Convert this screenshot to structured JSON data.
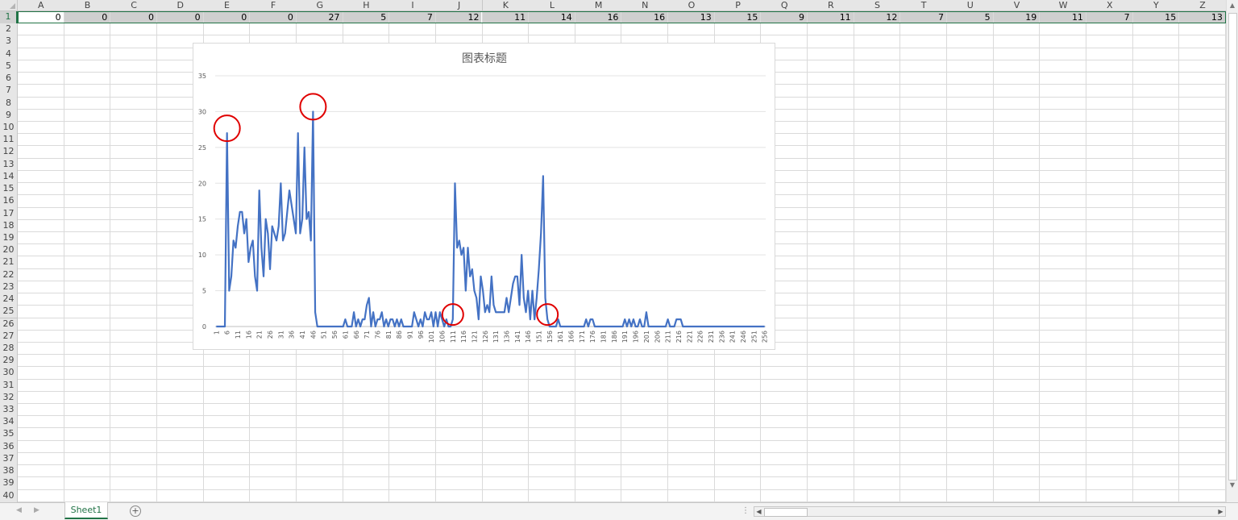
{
  "columns": [
    "A",
    "B",
    "C",
    "D",
    "E",
    "F",
    "G",
    "H",
    "I",
    "J",
    "K",
    "L",
    "M",
    "N",
    "O",
    "P",
    "Q",
    "R",
    "S",
    "T",
    "U",
    "V",
    "W",
    "X",
    "Y",
    "Z"
  ],
  "row_count": 40,
  "row1_values": [
    "0",
    "0",
    "0",
    "0",
    "0",
    "0",
    "27",
    "5",
    "7",
    "12",
    "11",
    "14",
    "16",
    "16",
    "13",
    "15",
    "9",
    "11",
    "12",
    "7",
    "5",
    "19",
    "11",
    "7",
    "15",
    "13"
  ],
  "highlight_color": "#cfcfcf",
  "accent_color": "#217346",
  "sheet_tab": "Sheet1",
  "chart_data": {
    "type": "line",
    "title": "图表标题",
    "series_color": "#4472C4",
    "marker_color": "#E00000",
    "ylim": [
      0,
      35
    ],
    "yticks": [
      0,
      5,
      10,
      15,
      20,
      25,
      30,
      35
    ],
    "x_start": 1,
    "x_tick_step": 5,
    "grid": true,
    "legend": "none",
    "values": [
      0,
      0,
      0,
      0,
      0,
      27,
      5,
      7,
      12,
      11,
      14,
      16,
      16,
      13,
      15,
      9,
      11,
      12,
      7,
      5,
      19,
      11,
      7,
      15,
      13,
      8,
      14,
      13,
      12,
      14,
      20,
      12,
      13,
      16,
      19,
      17,
      15,
      13,
      27,
      13,
      15,
      25,
      15,
      16,
      12,
      30,
      2,
      0,
      0,
      0,
      0,
      0,
      0,
      0,
      0,
      0,
      0,
      0,
      0,
      0,
      1,
      0,
      0,
      0,
      2,
      0,
      1,
      0,
      1,
      1,
      3,
      4,
      0,
      2,
      0,
      1,
      1,
      2,
      0,
      1,
      0,
      1,
      1,
      0,
      1,
      0,
      1,
      0,
      0,
      0,
      0,
      0,
      2,
      1,
      0,
      1,
      0,
      2,
      1,
      1,
      2,
      0,
      2,
      0,
      2,
      1,
      0,
      1,
      0,
      0,
      1,
      20,
      11,
      12,
      10,
      11,
      5,
      11,
      7,
      8,
      5,
      4,
      1,
      7,
      5,
      2,
      3,
      2,
      7,
      3,
      2,
      2,
      2,
      2,
      2,
      4,
      2,
      4,
      6,
      7,
      7,
      3,
      10,
      4,
      2,
      5,
      1,
      5,
      1,
      4,
      8,
      13,
      21,
      4,
      1,
      0,
      0,
      0,
      0,
      1,
      0,
      0,
      0,
      0,
      0,
      0,
      0,
      0,
      0,
      0,
      0,
      0,
      1,
      0,
      1,
      1,
      0,
      0,
      0,
      0,
      0,
      0,
      0,
      0,
      0,
      0,
      0,
      0,
      0,
      0,
      1,
      0,
      1,
      0,
      1,
      0,
      0,
      1,
      0,
      0,
      2,
      0,
      0,
      0,
      0,
      0,
      0,
      0,
      0,
      0,
      1,
      0,
      0,
      0,
      1,
      1,
      1,
      0,
      0,
      0,
      0,
      0,
      0,
      0,
      0,
      0,
      0,
      0,
      0,
      0,
      0,
      0,
      0,
      0,
      0,
      0,
      0,
      0,
      0,
      0,
      0,
      0,
      0,
      0,
      0,
      0,
      0,
      0,
      0,
      0,
      0,
      0,
      0,
      0,
      0,
      0
    ],
    "annotated_points": [
      6,
      46,
      111,
      155
    ]
  }
}
